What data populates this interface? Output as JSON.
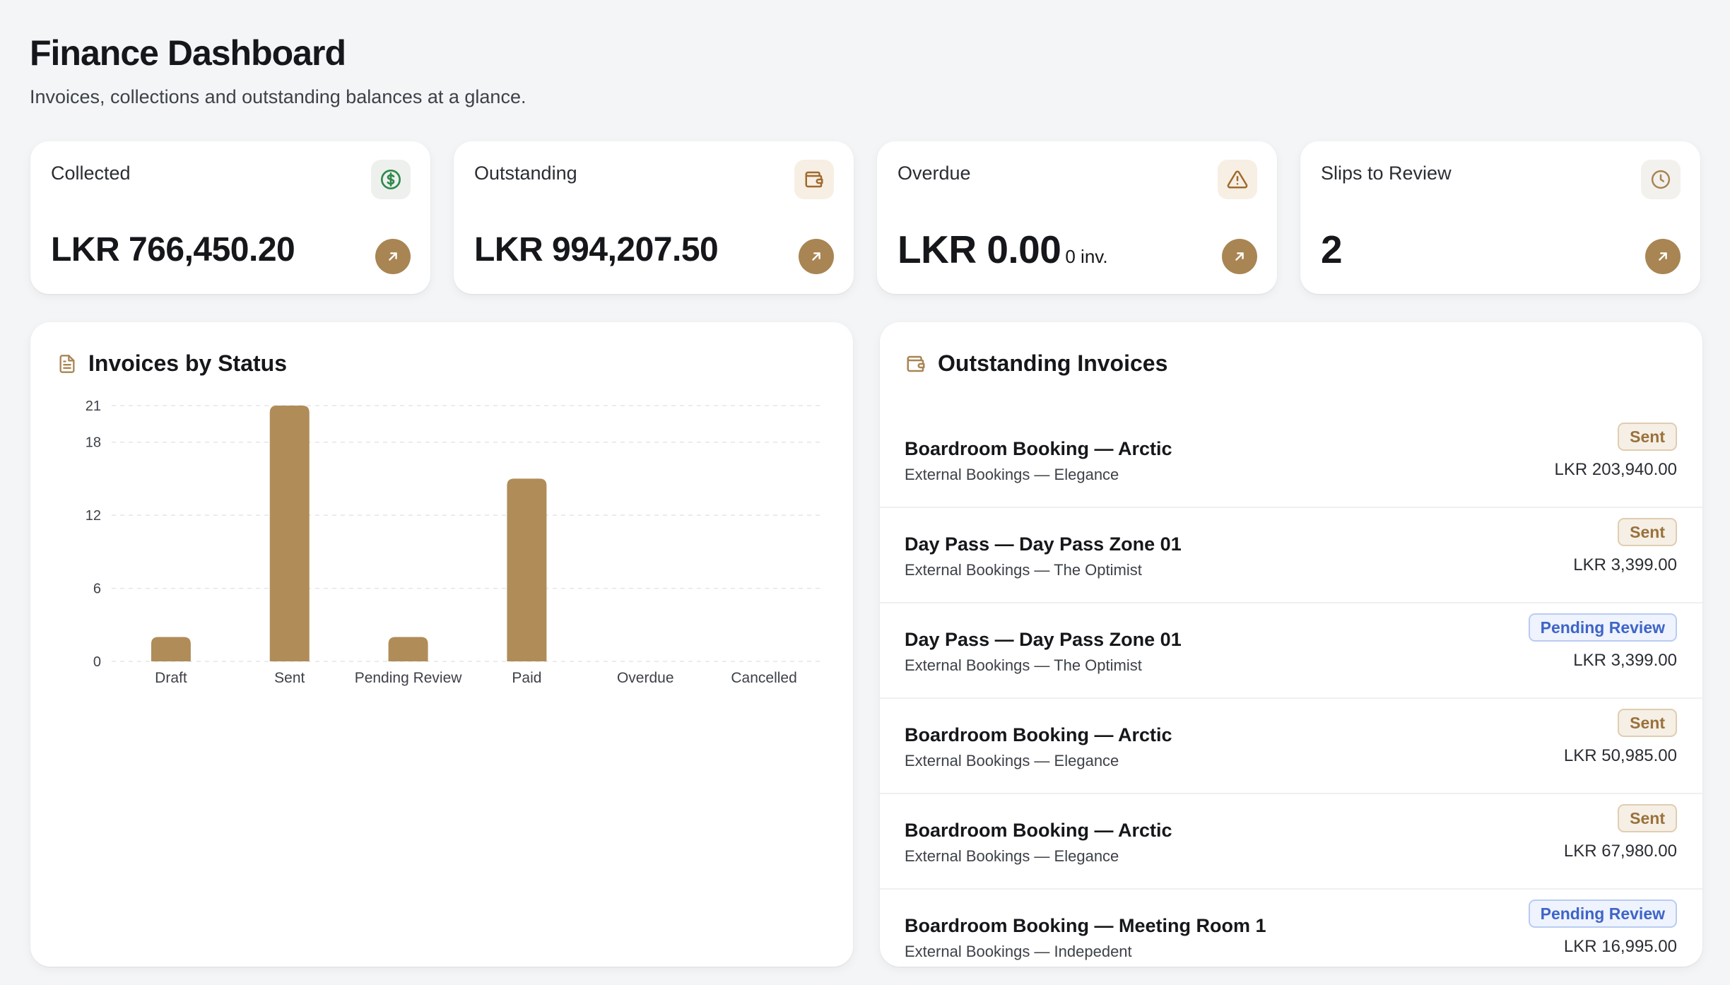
{
  "header": {
    "title": "Finance Dashboard",
    "subtitle": "Invoices, collections and outstanding balances at a glance."
  },
  "stats": [
    {
      "label": "Collected",
      "value": "LKR 766,450.20",
      "suffix": "",
      "icon": "dollar-circle-icon"
    },
    {
      "label": "Outstanding",
      "value": "LKR 994,207.50",
      "suffix": "",
      "icon": "wallet-icon"
    },
    {
      "label": "Overdue",
      "value": "LKR 0.00",
      "suffix": "0 inv.",
      "icon": "alert-triangle-icon"
    },
    {
      "label": "Slips to Review",
      "value": "2",
      "suffix": "",
      "icon": "clock-icon"
    }
  ],
  "colors": {
    "accent": "#a88553",
    "bar": "#b08c59",
    "sent_badge_text": "#99713c",
    "pending_badge_text": "#3e64c8",
    "dollar_icon": "#2f8a4a"
  },
  "chart_panel": {
    "title": "Invoices by Status",
    "icon": "document-icon"
  },
  "chart_data": {
    "type": "bar",
    "categories": [
      "Draft",
      "Sent",
      "Pending Review",
      "Paid",
      "Overdue",
      "Cancelled"
    ],
    "values": [
      2,
      21,
      2,
      15,
      0,
      0
    ],
    "yticks": [
      0,
      6,
      12,
      18,
      21
    ],
    "ylim": [
      0,
      21
    ],
    "grid": true,
    "title": "",
    "xlabel": "",
    "ylabel": ""
  },
  "invoices_panel": {
    "title": "Outstanding Invoices",
    "icon": "wallet-icon",
    "items": [
      {
        "name": "Boardroom Booking — Arctic",
        "sub": "External Bookings — Elegance",
        "status": "Sent",
        "amount": "LKR 203,940.00"
      },
      {
        "name": "Day Pass — Day Pass Zone 01",
        "sub": "External Bookings — The Optimist",
        "status": "Sent",
        "amount": "LKR 3,399.00"
      },
      {
        "name": "Day Pass — Day Pass Zone 01",
        "sub": "External Bookings — The Optimist",
        "status": "Pending Review",
        "amount": "LKR 3,399.00"
      },
      {
        "name": "Boardroom Booking — Arctic",
        "sub": "External Bookings — Elegance",
        "status": "Sent",
        "amount": "LKR 50,985.00"
      },
      {
        "name": "Boardroom Booking — Arctic",
        "sub": "External Bookings — Elegance",
        "status": "Sent",
        "amount": "LKR 67,980.00"
      },
      {
        "name": "Boardroom Booking — Meeting Room 1",
        "sub": "External Bookings — Indepedent",
        "status": "Pending Review",
        "amount": "LKR 16,995.00"
      }
    ]
  }
}
